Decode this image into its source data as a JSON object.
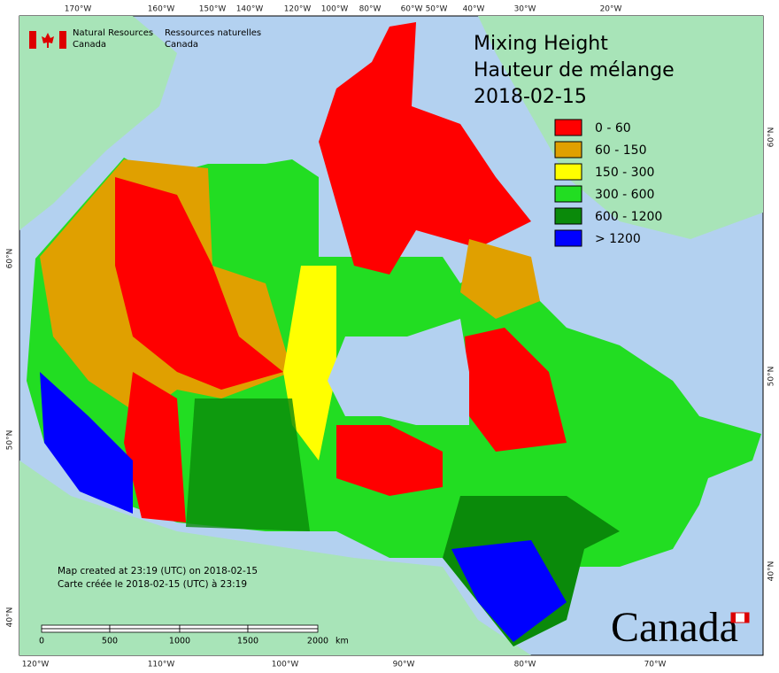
{
  "header": {
    "agency_en": [
      "Natural Resources",
      "Canada"
    ],
    "agency_fr": [
      "Ressources naturelles",
      "Canada"
    ]
  },
  "title": [
    "Mixing Height",
    "Hauteur de mélange",
    "2018-02-15"
  ],
  "legend": [
    {
      "label": "0 - 60",
      "color": "#ff0000"
    },
    {
      "label": "60 - 150",
      "color": "#e0a000"
    },
    {
      "label": "150 - 300",
      "color": "#ffff00"
    },
    {
      "label": "300 - 600",
      "color": "#22dd22"
    },
    {
      "label": "600 - 1200",
      "color": "#0a8a0a"
    },
    {
      "label": "> 1200",
      "color": "#0000ff"
    }
  ],
  "top_labels": [
    "170°W",
    "160°W",
    "150°W",
    "140°W",
    "120°W",
    "100°W",
    "80°W",
    "60°W",
    "50°W",
    "40°W",
    "30°W",
    "20°W"
  ],
  "bottom_labels": [
    "120°W",
    "110°W",
    "100°W",
    "90°W",
    "80°W",
    "70°W"
  ],
  "left_labels": [
    "60°N",
    "50°N",
    "40°N"
  ],
  "right_labels": [
    "60°N",
    "50°N",
    "40°N"
  ],
  "scale_bar": {
    "ticks": [
      "0",
      "500",
      "1000",
      "1500",
      "2000"
    ],
    "unit": "km"
  },
  "notes": [
    "Map created at 23:19 (UTC) on 2018-02-15",
    "Carte créée le 2018-02-15 (UTC) à 23:19"
  ],
  "wordmark": "Canada"
}
